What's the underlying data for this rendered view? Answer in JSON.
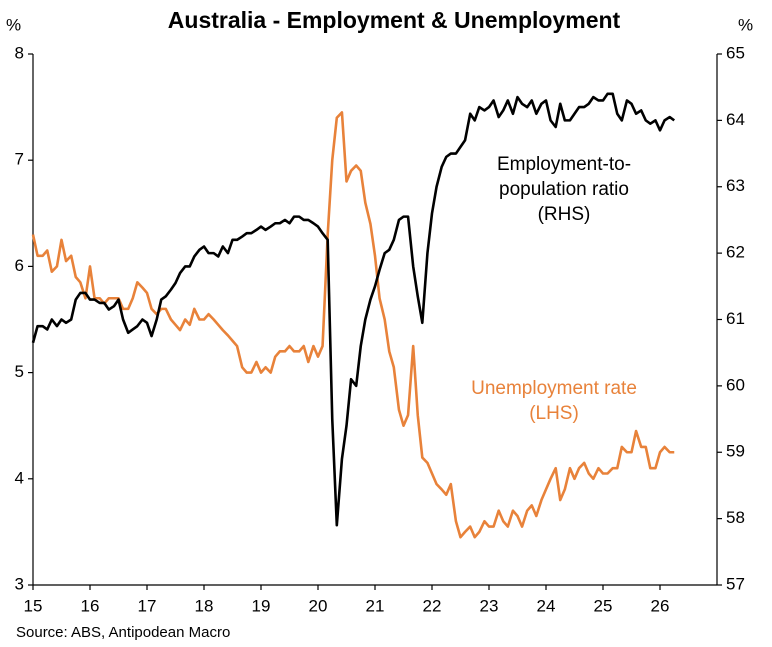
{
  "chart_data": {
    "type": "line",
    "title": "Australia - Employment & Unemployment",
    "y_unit": "%",
    "y2_unit": "%",
    "source": "Source: ABS, Antipodean Macro",
    "annotations": [
      {
        "lines": [
          "Employment-to-",
          "population ratio",
          "(RHS)"
        ]
      },
      {
        "lines": [
          "Unemployment rate",
          "(LHS)"
        ]
      }
    ],
    "xlim": [
      15,
      27
    ],
    "xticks": [
      15,
      16,
      17,
      18,
      19,
      20,
      21,
      22,
      23,
      24,
      25,
      26
    ],
    "ylim": [
      3,
      8
    ],
    "yticks": [
      3,
      4,
      5,
      6,
      7,
      8
    ],
    "y2lim": [
      57,
      65
    ],
    "y2ticks": [
      57,
      58,
      59,
      60,
      61,
      62,
      63,
      64,
      65
    ],
    "x": [
      15,
      15.08,
      15.17,
      15.25,
      15.33,
      15.42,
      15.5,
      15.58,
      15.67,
      15.75,
      15.83,
      15.92,
      16,
      16.08,
      16.17,
      16.25,
      16.33,
      16.42,
      16.5,
      16.58,
      16.67,
      16.75,
      16.83,
      16.92,
      17,
      17.08,
      17.17,
      17.25,
      17.33,
      17.42,
      17.5,
      17.58,
      17.67,
      17.75,
      17.83,
      17.92,
      18,
      18.08,
      18.17,
      18.25,
      18.33,
      18.42,
      18.5,
      18.58,
      18.67,
      18.75,
      18.83,
      18.92,
      19,
      19.08,
      19.17,
      19.25,
      19.33,
      19.42,
      19.5,
      19.58,
      19.67,
      19.75,
      19.83,
      19.92,
      20,
      20.08,
      20.17,
      20.25,
      20.33,
      20.42,
      20.5,
      20.58,
      20.67,
      20.75,
      20.83,
      20.92,
      21,
      21.08,
      21.17,
      21.25,
      21.33,
      21.42,
      21.5,
      21.58,
      21.67,
      21.75,
      21.83,
      21.92,
      22,
      22.08,
      22.17,
      22.25,
      22.33,
      22.42,
      22.5,
      22.58,
      22.67,
      22.75,
      22.83,
      22.92,
      23,
      23.08,
      23.17,
      23.25,
      23.33,
      23.42,
      23.5,
      23.58,
      23.67,
      23.75,
      23.83,
      23.92,
      24,
      24.08,
      24.17,
      24.25,
      24.33,
      24.42,
      24.5,
      24.58,
      24.67,
      24.75,
      24.83,
      24.92,
      25,
      25.08,
      25.17,
      25.25,
      25.33,
      25.42,
      25.5,
      25.58,
      25.67,
      25.75,
      25.83,
      25.92,
      26,
      26.08,
      26.17,
      26.25
    ],
    "series": [
      {
        "name": "Unemployment rate",
        "color": "#e8823a",
        "axis": "y",
        "values": [
          6.3,
          6.1,
          6.1,
          6.15,
          5.95,
          6.0,
          6.25,
          6.05,
          6.1,
          5.9,
          5.85,
          5.7,
          6.0,
          5.7,
          5.7,
          5.65,
          5.7,
          5.7,
          5.7,
          5.6,
          5.6,
          5.7,
          5.85,
          5.8,
          5.75,
          5.6,
          5.55,
          5.6,
          5.6,
          5.5,
          5.45,
          5.4,
          5.5,
          5.45,
          5.6,
          5.5,
          5.5,
          5.55,
          5.5,
          5.45,
          5.4,
          5.35,
          5.3,
          5.25,
          5.05,
          5.0,
          5.0,
          5.1,
          5.0,
          5.05,
          5.0,
          5.15,
          5.2,
          5.2,
          5.25,
          5.2,
          5.2,
          5.25,
          5.1,
          5.25,
          5.15,
          5.25,
          6.3,
          7.0,
          7.4,
          7.45,
          6.8,
          6.9,
          6.95,
          6.9,
          6.6,
          6.4,
          6.1,
          5.7,
          5.5,
          5.2,
          5.05,
          4.65,
          4.5,
          4.6,
          5.25,
          4.6,
          4.2,
          4.15,
          4.05,
          3.95,
          3.9,
          3.85,
          3.95,
          3.6,
          3.45,
          3.5,
          3.55,
          3.45,
          3.5,
          3.6,
          3.55,
          3.55,
          3.7,
          3.6,
          3.55,
          3.7,
          3.65,
          3.55,
          3.7,
          3.75,
          3.65,
          3.8,
          3.9,
          4.0,
          4.1,
          3.8,
          3.9,
          4.1,
          4.0,
          4.1,
          4.15,
          4.05,
          4.0,
          4.1,
          4.05,
          4.05,
          4.1,
          4.1,
          4.3,
          4.25,
          4.25,
          4.45,
          4.3,
          4.3,
          4.1,
          4.1,
          4.25,
          4.3,
          4.25,
          4.25
        ]
      },
      {
        "name": "Employment-to-population ratio",
        "color": "#000000",
        "axis": "y2",
        "values": [
          60.65,
          60.9,
          60.9,
          60.85,
          61.0,
          60.9,
          61.0,
          60.95,
          61.0,
          61.3,
          61.4,
          61.4,
          61.3,
          61.3,
          61.25,
          61.25,
          61.15,
          61.2,
          61.3,
          61.0,
          60.8,
          60.85,
          60.9,
          61.0,
          60.95,
          60.75,
          61.0,
          61.3,
          61.35,
          61.45,
          61.55,
          61.7,
          61.8,
          61.8,
          61.95,
          62.05,
          62.1,
          62.0,
          62.0,
          61.95,
          62.1,
          62.0,
          62.2,
          62.2,
          62.25,
          62.3,
          62.3,
          62.35,
          62.4,
          62.35,
          62.4,
          62.45,
          62.45,
          62.5,
          62.45,
          62.55,
          62.55,
          62.5,
          62.5,
          62.45,
          62.4,
          62.3,
          62.2,
          59.5,
          57.9,
          58.9,
          59.4,
          60.1,
          60.0,
          60.6,
          61.0,
          61.3,
          61.5,
          61.75,
          62.0,
          62.05,
          62.2,
          62.5,
          62.55,
          62.55,
          61.8,
          61.35,
          60.95,
          62.0,
          62.6,
          63.0,
          63.3,
          63.45,
          63.5,
          63.5,
          63.6,
          63.7,
          64.1,
          64.0,
          64.2,
          64.15,
          64.2,
          64.3,
          64.05,
          64.15,
          64.3,
          64.1,
          64.35,
          64.25,
          64.2,
          64.3,
          64.1,
          64.25,
          64.3,
          64.0,
          63.9,
          64.25,
          64.0,
          64.0,
          64.1,
          64.2,
          64.2,
          64.25,
          64.35,
          64.3,
          64.3,
          64.4,
          64.4,
          64.1,
          64.0,
          64.3,
          64.25,
          64.1,
          64.15,
          64.0,
          63.95,
          64.0,
          63.85,
          64.0,
          64.05,
          64.0
        ]
      }
    ]
  }
}
